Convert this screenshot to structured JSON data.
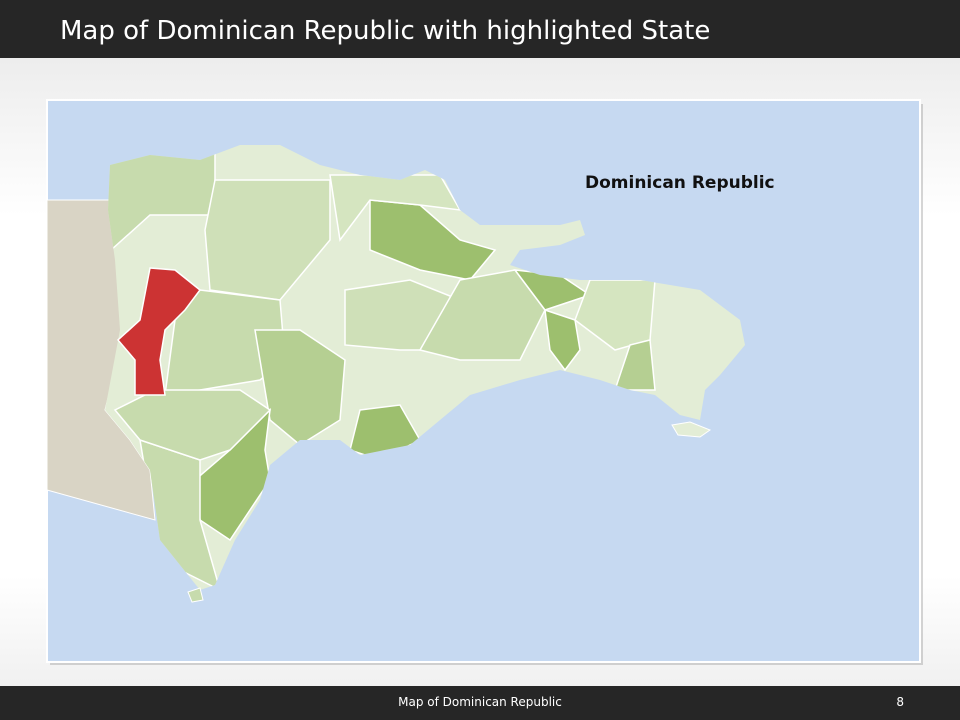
{
  "header": {
    "title": "Map of Dominican Republic with highlighted State"
  },
  "map": {
    "label": "Dominican Republic"
  },
  "footer": {
    "text": "Map of Dominican Republic",
    "page": "8"
  }
}
